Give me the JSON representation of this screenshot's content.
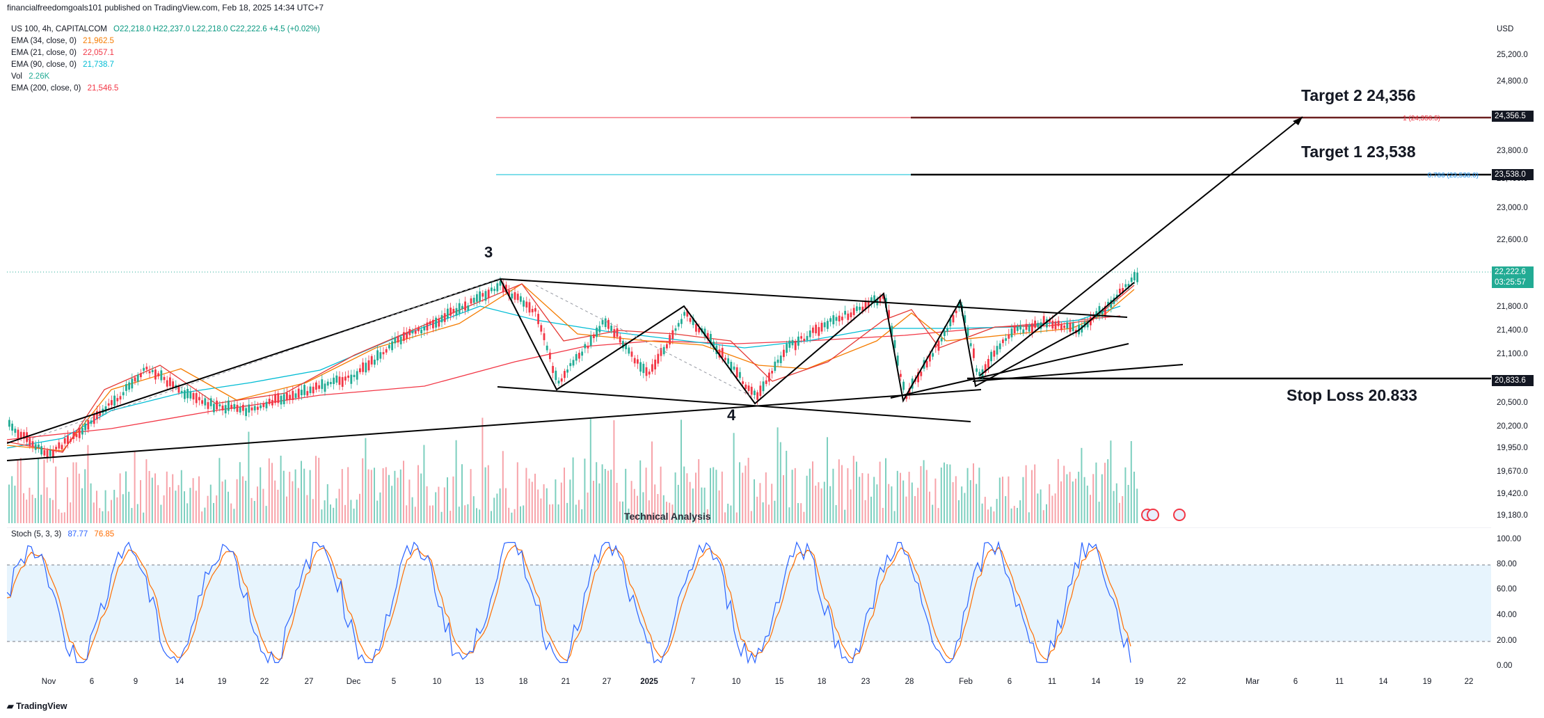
{
  "header": {
    "published_line": "financialfreedomgoals101 published on TradingView.com, Feb 18, 2025 14:34 UTC+7"
  },
  "legend": {
    "symbol": "US 100, 4h, CAPITALCOM",
    "ohlc": "O22,218.0  H22,237.0  L22,218.0  C22,222.6  +4.5 (+0.02%)",
    "ema34": {
      "label": "EMA (34, close, 0)",
      "value": "21,962.5",
      "color": "#f57c00"
    },
    "ema21": {
      "label": "EMA (21, close, 0)",
      "value": "22,057.1",
      "color": "#f23645"
    },
    "ema90": {
      "label": "EMA (90, close, 0)",
      "value": "21,738.7",
      "color": "#22ab94"
    },
    "vol": {
      "label": "Vol",
      "value": "2.26K",
      "color": "#22ab94"
    },
    "ema200": {
      "label": "EMA (200, close, 0)",
      "value": "21,546.5",
      "color": "#f23645"
    }
  },
  "price_axis": {
    "currency": "USD",
    "ticks": [
      "25,200.0",
      "24,800.0",
      "23,800.0",
      "23,400.0",
      "23,000.0",
      "22,600.0",
      "21,800.0",
      "21,400.0",
      "21,100.0",
      "20,500.0",
      "20,200.0",
      "19,950.0",
      "19,670.0",
      "19,420.0",
      "19,180.0"
    ],
    "tag_target2": "24,356.5",
    "tag_target1": "23,538.0",
    "tag_last": "22,222.6",
    "tag_countdown": "03:25:57",
    "tag_stop": "20,833.6"
  },
  "time_axis": {
    "labels": [
      "Nov",
      "6",
      "9",
      "14",
      "19",
      "22",
      "27",
      "Dec",
      "5",
      "10",
      "13",
      "18",
      "21",
      "27",
      "2025",
      "7",
      "10",
      "15",
      "18",
      "23",
      "28",
      "Feb",
      "6",
      "11",
      "14",
      "19",
      "22",
      "Mar",
      "6",
      "11",
      "14",
      "19",
      "22"
    ]
  },
  "annotations": {
    "target2": "Target 2  24,356",
    "target1": "Target 1  23,538",
    "stop_loss": "Stop Loss 20.833",
    "wave3": "3",
    "wave4": "4",
    "fib1_label": "1 (24,356.5)",
    "fib0786_label": "0.786 (23,538.0)",
    "watermark": "Technical Analysis"
  },
  "stochastic": {
    "label": "Stoch (5, 3, 3)",
    "k": "87.77",
    "d": "76.85",
    "k_color": "#2962ff",
    "d_color": "#ff6d00",
    "axis": [
      "100.00",
      "80.00",
      "60.00",
      "40.00",
      "20.00",
      "0.00"
    ]
  },
  "footer": {
    "brand": "TradingView"
  },
  "colors": {
    "up": "#22ab94",
    "down": "#f23645",
    "band": "#e3f2fd"
  }
}
